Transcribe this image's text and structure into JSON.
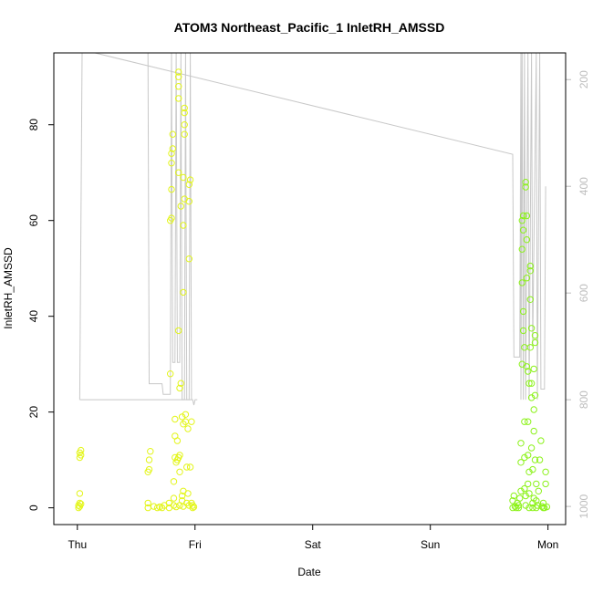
{
  "chart_data": {
    "type": "scatter",
    "title": "ATOM3 Northeast_Pacific_1 InletRH_AMSSD",
    "xlabel": "Date",
    "ylabel": "InletRH_AMSSD",
    "x_tick_labels": [
      "Thu",
      "Fri",
      "Sat",
      "Sun",
      "Mon"
    ],
    "x_range_days": [
      -0.2,
      4.15
    ],
    "ylim": [
      -3.5,
      95
    ],
    "y_ticks": [
      0,
      20,
      40,
      60,
      80
    ],
    "y2_ticks": [
      200,
      400,
      600,
      800,
      1000
    ],
    "y2_lim": [
      1034,
      150
    ],
    "colors": {
      "line": "#c8c8c8",
      "axis": "#000000",
      "right_axis": "#bdbdbd",
      "point_yellow": "#e3f51a",
      "point_green": "#8cf21a"
    },
    "secondary_line": [
      [
        0.02,
        800
      ],
      [
        0.04,
        150
      ],
      [
        0.15,
        150
      ],
      [
        3.7,
        340
      ],
      [
        3.71,
        720
      ],
      [
        3.76,
        720
      ],
      [
        3.77,
        150
      ],
      [
        3.77,
        800
      ],
      [
        3.78,
        150
      ],
      [
        3.79,
        800
      ],
      [
        3.8,
        150
      ],
      [
        3.81,
        800
      ],
      [
        3.83,
        150
      ],
      [
        3.84,
        800
      ],
      [
        3.86,
        150
      ],
      [
        3.87,
        700
      ],
      [
        3.9,
        150
      ],
      [
        3.91,
        800
      ],
      [
        3.93,
        150
      ],
      [
        3.94,
        780
      ],
      [
        3.97,
        780
      ],
      [
        3.98,
        400
      ]
    ],
    "secondary_line_fri": [
      [
        0.02,
        800
      ],
      [
        0.98,
        800
      ],
      [
        0.99,
        810
      ],
      [
        1.0,
        800
      ],
      [
        1.02,
        800
      ]
    ],
    "secondary_line_fri_spikes": [
      [
        0.6,
        150
      ],
      [
        0.61,
        770
      ],
      [
        0.72,
        770
      ],
      [
        0.73,
        790
      ],
      [
        0.79,
        790
      ],
      [
        0.8,
        150
      ],
      [
        0.81,
        730
      ],
      [
        0.83,
        730
      ],
      [
        0.84,
        150
      ],
      [
        0.85,
        730
      ],
      [
        0.87,
        730
      ],
      [
        0.88,
        150
      ],
      [
        0.89,
        800
      ],
      [
        0.91,
        800
      ],
      [
        0.92,
        150
      ],
      [
        0.93,
        800
      ],
      [
        0.95,
        800
      ],
      [
        0.96,
        150
      ],
      [
        0.97,
        800
      ]
    ],
    "series": [
      {
        "color_key": "point_yellow",
        "points": [
          [
            0.01,
            0
          ],
          [
            0.01,
            0.5
          ],
          [
            0.02,
            0.3
          ],
          [
            0.02,
            1
          ],
          [
            0.03,
            0.8
          ],
          [
            0.02,
            3
          ],
          [
            0.02,
            10.5
          ],
          [
            0.02,
            11.5
          ],
          [
            0.03,
            12
          ],
          [
            0.03,
            11
          ],
          [
            0.6,
            0
          ],
          [
            0.6,
            1
          ],
          [
            0.6,
            7.5
          ],
          [
            0.61,
            8
          ],
          [
            0.61,
            10
          ],
          [
            0.62,
            11.8
          ],
          [
            0.65,
            0.3
          ],
          [
            0.68,
            0
          ],
          [
            0.7,
            0.2
          ],
          [
            0.72,
            0
          ],
          [
            0.74,
            0.5
          ],
          [
            0.78,
            0
          ],
          [
            0.78,
            1
          ],
          [
            0.79,
            28
          ],
          [
            0.79,
            60
          ],
          [
            0.8,
            60.5
          ],
          [
            0.8,
            66.5
          ],
          [
            0.8,
            72
          ],
          [
            0.8,
            74
          ],
          [
            0.81,
            75
          ],
          [
            0.81,
            78
          ],
          [
            0.82,
            0.5
          ],
          [
            0.82,
            2
          ],
          [
            0.82,
            5.5
          ],
          [
            0.83,
            10.5
          ],
          [
            0.83,
            15
          ],
          [
            0.83,
            18.5
          ],
          [
            0.84,
            0.2
          ],
          [
            0.84,
            9.5
          ],
          [
            0.85,
            10
          ],
          [
            0.85,
            14
          ],
          [
            0.86,
            10.5
          ],
          [
            0.86,
            37
          ],
          [
            0.86,
            70
          ],
          [
            0.86,
            85.5
          ],
          [
            0.86,
            88
          ],
          [
            0.86,
            90
          ],
          [
            0.86,
            91
          ],
          [
            0.87,
            0.5
          ],
          [
            0.87,
            7.5
          ],
          [
            0.87,
            11
          ],
          [
            0.87,
            25
          ],
          [
            0.88,
            26
          ],
          [
            0.88,
            63
          ],
          [
            0.89,
            1.5
          ],
          [
            0.89,
            2.5
          ],
          [
            0.89,
            19
          ],
          [
            0.9,
            0.3
          ],
          [
            0.9,
            3.5
          ],
          [
            0.9,
            17.5
          ],
          [
            0.9,
            45
          ],
          [
            0.9,
            59
          ],
          [
            0.9,
            69
          ],
          [
            0.91,
            64.5
          ],
          [
            0.91,
            78
          ],
          [
            0.91,
            80
          ],
          [
            0.91,
            82.5
          ],
          [
            0.91,
            83.5
          ],
          [
            0.92,
            18
          ],
          [
            0.92,
            19.5
          ],
          [
            0.93,
            1
          ],
          [
            0.93,
            8.5
          ],
          [
            0.94,
            3
          ],
          [
            0.94,
            16.5
          ],
          [
            0.95,
            0.5
          ],
          [
            0.95,
            52
          ],
          [
            0.95,
            64
          ],
          [
            0.95,
            67.5
          ],
          [
            0.96,
            68.5
          ],
          [
            0.96,
            8.5
          ],
          [
            0.97,
            1
          ],
          [
            0.97,
            18
          ],
          [
            0.98,
            0
          ],
          [
            0.98,
            0.5
          ],
          [
            0.99,
            0.2
          ]
        ]
      },
      {
        "color_key": "point_green",
        "points": [
          [
            3.7,
            0
          ],
          [
            3.7,
            1.5
          ],
          [
            3.71,
            2.5
          ],
          [
            3.72,
            0.3
          ],
          [
            3.73,
            0
          ],
          [
            3.74,
            1
          ],
          [
            3.75,
            0
          ],
          [
            3.75,
            0.5
          ],
          [
            3.76,
            2
          ],
          [
            3.77,
            3.5
          ],
          [
            3.77,
            9.5
          ],
          [
            3.77,
            13.5
          ],
          [
            3.78,
            30
          ],
          [
            3.78,
            47
          ],
          [
            3.78,
            54
          ],
          [
            3.78,
            60
          ],
          [
            3.79,
            61
          ],
          [
            3.79,
            58
          ],
          [
            3.79,
            41
          ],
          [
            3.79,
            37
          ],
          [
            3.8,
            33.5
          ],
          [
            3.8,
            18
          ],
          [
            3.8,
            10.5
          ],
          [
            3.8,
            4
          ],
          [
            3.81,
            2.5
          ],
          [
            3.81,
            0.5
          ],
          [
            3.81,
            67
          ],
          [
            3.81,
            68
          ],
          [
            3.82,
            61
          ],
          [
            3.82,
            56
          ],
          [
            3.82,
            48
          ],
          [
            3.82,
            29.5
          ],
          [
            3.83,
            28.5
          ],
          [
            3.83,
            18
          ],
          [
            3.83,
            11
          ],
          [
            3.83,
            5
          ],
          [
            3.84,
            0
          ],
          [
            3.84,
            3
          ],
          [
            3.84,
            7.5
          ],
          [
            3.84,
            26
          ],
          [
            3.85,
            33.5
          ],
          [
            3.85,
            43.5
          ],
          [
            3.85,
            49.5
          ],
          [
            3.85,
            50.5
          ],
          [
            3.86,
            37.5
          ],
          [
            3.86,
            26
          ],
          [
            3.86,
            23
          ],
          [
            3.86,
            12.5
          ],
          [
            3.87,
            8
          ],
          [
            3.87,
            1
          ],
          [
            3.87,
            0
          ],
          [
            3.88,
            2
          ],
          [
            3.88,
            16
          ],
          [
            3.88,
            20.5
          ],
          [
            3.88,
            29
          ],
          [
            3.89,
            36
          ],
          [
            3.89,
            34.5
          ],
          [
            3.89,
            23.5
          ],
          [
            3.89,
            10
          ],
          [
            3.9,
            5
          ],
          [
            3.9,
            1.5
          ],
          [
            3.9,
            0
          ],
          [
            3.91,
            0.5
          ],
          [
            3.92,
            3.5
          ],
          [
            3.93,
            10
          ],
          [
            3.94,
            14
          ],
          [
            3.95,
            0.3
          ],
          [
            3.96,
            0
          ],
          [
            3.96,
            1
          ],
          [
            3.97,
            0
          ],
          [
            3.98,
            5
          ],
          [
            3.98,
            7.5
          ],
          [
            3.99,
            0.2
          ]
        ]
      }
    ]
  }
}
